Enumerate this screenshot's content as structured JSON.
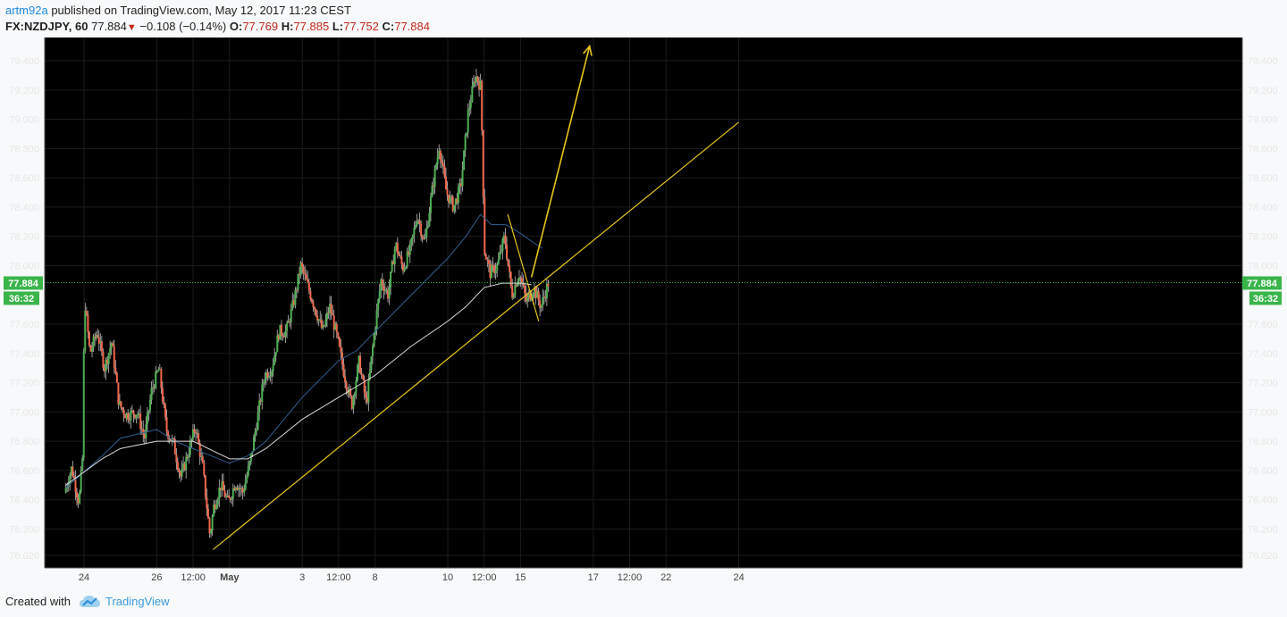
{
  "header": {
    "author": "artm92a",
    "published_text": "published on TradingView.com, May 12, 2017 11:23 CEST",
    "symbol": "FX:NZDJPY, 60",
    "last": "77.884",
    "change": "−0.108 (−0.14%)",
    "o_label": "O:",
    "o_value": "77.769",
    "h_label": "H:",
    "h_value": "77.885",
    "l_label": "L:",
    "l_value": "77.752",
    "c_label": "C:",
    "c_value": "77.884"
  },
  "footer": {
    "created_with": "Created with",
    "brand": "TradingView"
  },
  "colors": {
    "background": "#000000",
    "grid": "#1c1c1c",
    "up_candle": "#4caf50",
    "down_candle": "#f0674a",
    "ma_fast": "#2f5f8f",
    "ma_slow": "#d8d8d8",
    "drawing": "#e8c61c",
    "price_line": "#39b54a",
    "badge": "#39b54a"
  },
  "chart_data": {
    "type": "candlestick",
    "symbol": "FX:NZDJPY",
    "interval": "60",
    "y_ticks": [
      "79.400",
      "79.200",
      "79.000",
      "78.800",
      "78.600",
      "78.400",
      "78.200",
      "78.000",
      "77.600",
      "77.400",
      "77.200",
      "77.000",
      "76.800",
      "76.600",
      "76.400",
      "76.200",
      "76.020"
    ],
    "y_tick_values": [
      79.4,
      79.2,
      79.0,
      78.8,
      78.6,
      78.4,
      78.2,
      78.0,
      77.6,
      77.4,
      77.2,
      77.0,
      76.8,
      76.6,
      76.4,
      76.2,
      76.02
    ],
    "ylim": [
      76.02,
      79.4
    ],
    "x_ticks": [
      {
        "label": "24",
        "x": 0,
        "bold": false
      },
      {
        "label": "26",
        "x": 2,
        "bold": false
      },
      {
        "label": "12:00",
        "x": 3,
        "bold": false
      },
      {
        "label": "May",
        "x": 4,
        "bold": true
      },
      {
        "label": "3",
        "x": 6,
        "bold": false
      },
      {
        "label": "12:00",
        "x": 7,
        "bold": false
      },
      {
        "label": "8",
        "x": 8,
        "bold": false
      },
      {
        "label": "10",
        "x": 10,
        "bold": false
      },
      {
        "label": "12:00",
        "x": 11,
        "bold": false
      },
      {
        "label": "15",
        "x": 12,
        "bold": false
      },
      {
        "label": "17",
        "x": 14,
        "bold": false
      },
      {
        "label": "12:00",
        "x": 15,
        "bold": false
      },
      {
        "label": "22",
        "x": 16,
        "bold": false
      },
      {
        "label": "24",
        "x": 18,
        "bold": false
      }
    ],
    "x_range": [
      -0.5,
      19
    ],
    "last_price": 77.884,
    "last_price_label": "77.884",
    "countdown_label": "36:32",
    "path_points": [
      [
        -0.5,
        76.45
      ],
      [
        -0.3,
        76.62
      ],
      [
        -0.1,
        76.38
      ],
      [
        0.0,
        76.7
      ],
      [
        0.05,
        77.78
      ],
      [
        0.2,
        77.4
      ],
      [
        0.4,
        77.55
      ],
      [
        0.6,
        77.3
      ],
      [
        0.8,
        77.48
      ],
      [
        1.0,
        77.05
      ],
      [
        1.2,
        76.98
      ],
      [
        1.5,
        77.0
      ],
      [
        1.7,
        76.82
      ],
      [
        1.9,
        77.15
      ],
      [
        2.1,
        77.3
      ],
      [
        2.3,
        76.88
      ],
      [
        2.5,
        76.78
      ],
      [
        2.7,
        76.55
      ],
      [
        2.9,
        76.72
      ],
      [
        3.1,
        76.9
      ],
      [
        3.3,
        76.62
      ],
      [
        3.5,
        76.15
      ],
      [
        3.6,
        76.35
      ],
      [
        3.8,
        76.5
      ],
      [
        4.0,
        76.38
      ],
      [
        4.2,
        76.52
      ],
      [
        4.4,
        76.45
      ],
      [
        4.6,
        76.65
      ],
      [
        4.8,
        76.95
      ],
      [
        5.0,
        77.25
      ],
      [
        5.2,
        77.3
      ],
      [
        5.4,
        77.55
      ],
      [
        5.6,
        77.55
      ],
      [
        5.8,
        77.75
      ],
      [
        6.0,
        78.0
      ],
      [
        6.2,
        77.85
      ],
      [
        6.4,
        77.7
      ],
      [
        6.6,
        77.55
      ],
      [
        6.8,
        77.72
      ],
      [
        7.0,
        77.5
      ],
      [
        7.2,
        77.25
      ],
      [
        7.4,
        77.05
      ],
      [
        7.6,
        77.35
      ],
      [
        7.8,
        77.05
      ],
      [
        8.0,
        77.5
      ],
      [
        8.2,
        77.9
      ],
      [
        8.4,
        77.8
      ],
      [
        8.6,
        78.15
      ],
      [
        8.8,
        77.98
      ],
      [
        9.0,
        78.1
      ],
      [
        9.2,
        78.35
      ],
      [
        9.4,
        78.15
      ],
      [
        9.6,
        78.5
      ],
      [
        9.8,
        78.82
      ],
      [
        10.0,
        78.5
      ],
      [
        10.2,
        78.4
      ],
      [
        10.4,
        78.55
      ],
      [
        10.6,
        79.05
      ],
      [
        10.8,
        79.3
      ],
      [
        10.95,
        79.22
      ],
      [
        11.05,
        78.1
      ],
      [
        11.2,
        77.95
      ],
      [
        11.4,
        78.0
      ],
      [
        11.6,
        78.2
      ],
      [
        11.8,
        77.8
      ],
      [
        12.0,
        77.95
      ],
      [
        12.2,
        77.75
      ],
      [
        12.4,
        77.85
      ],
      [
        12.6,
        77.72
      ],
      [
        12.8,
        77.88
      ]
    ],
    "ma_fast": [
      [
        -0.5,
        76.48
      ],
      [
        0.5,
        76.7
      ],
      [
        1.0,
        76.82
      ],
      [
        2.0,
        76.88
      ],
      [
        2.5,
        76.8
      ],
      [
        3.0,
        76.75
      ],
      [
        4.0,
        76.65
      ],
      [
        4.5,
        76.7
      ],
      [
        5.0,
        76.8
      ],
      [
        6.0,
        77.1
      ],
      [
        7.0,
        77.35
      ],
      [
        7.5,
        77.42
      ],
      [
        8.0,
        77.55
      ],
      [
        9.0,
        77.8
      ],
      [
        10.0,
        78.05
      ],
      [
        10.5,
        78.2
      ],
      [
        10.9,
        78.35
      ],
      [
        11.2,
        78.28
      ],
      [
        11.6,
        78.28
      ],
      [
        12.0,
        78.22
      ],
      [
        12.4,
        78.15
      ],
      [
        12.6,
        78.12
      ]
    ],
    "ma_slow": [
      [
        -0.5,
        76.5
      ],
      [
        0.5,
        76.68
      ],
      [
        1.0,
        76.75
      ],
      [
        2.0,
        76.8
      ],
      [
        3.0,
        76.8
      ],
      [
        4.0,
        76.68
      ],
      [
        4.5,
        76.68
      ],
      [
        5.0,
        76.75
      ],
      [
        6.0,
        76.95
      ],
      [
        7.0,
        77.1
      ],
      [
        8.0,
        77.25
      ],
      [
        9.0,
        77.45
      ],
      [
        10.0,
        77.62
      ],
      [
        10.5,
        77.72
      ],
      [
        11.0,
        77.85
      ],
      [
        11.5,
        77.88
      ],
      [
        12.0,
        77.88
      ],
      [
        12.3,
        77.87
      ]
    ],
    "trend_lines": [
      {
        "from": [
          3.55,
          76.06
        ],
        "to": [
          18.0,
          78.98
        ]
      },
      {
        "from": [
          11.65,
          78.35
        ],
        "to": [
          12.5,
          77.62
        ]
      }
    ],
    "forecast_arrow": {
      "from": [
        12.3,
        77.92
      ],
      "to": [
        13.9,
        79.5
      ]
    }
  }
}
